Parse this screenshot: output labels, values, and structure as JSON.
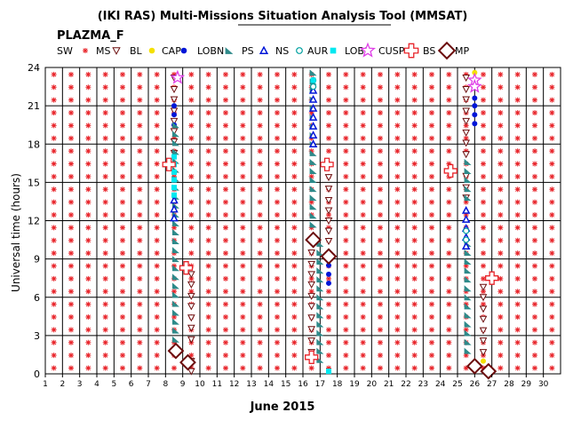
{
  "chart_data": {
    "type": "scatter",
    "title": "(IKI RAS) Multi-Missions Situation Analysis Tool (MMSAT)",
    "subtitle": "PLAZMA_F",
    "xlabel": "June 2015",
    "ylabel": "Universal time (hours)",
    "xlim": [
      1,
      31
    ],
    "ylim": [
      0,
      24
    ],
    "x_ticks": [
      "1",
      "2",
      "3",
      "4",
      "5",
      "6",
      "7",
      "8",
      "9",
      "10",
      "11",
      "12",
      "13",
      "14",
      "15",
      "16",
      "17",
      "18",
      "19",
      "20",
      "21",
      "22",
      "23",
      "24",
      "25",
      "26",
      "27",
      "28",
      "29",
      "30"
    ],
    "y_ticks": [
      "0",
      "3",
      "6",
      "9",
      "12",
      "15",
      "18",
      "21",
      "24"
    ],
    "grid": true,
    "legend_placement": "top",
    "legend": [
      {
        "name": "SW",
        "marker": "asterisk",
        "color": "#e8242a"
      },
      {
        "name": "MS",
        "marker": "triangle-down-open",
        "color": "#6b0d0d"
      },
      {
        "name": "BL",
        "marker": "dot",
        "color": "#f4e000"
      },
      {
        "name": "CAP",
        "marker": "dot",
        "color": "#0016d8"
      },
      {
        "name": "LOBN",
        "marker": "triangle",
        "color": "#2e8a8a"
      },
      {
        "name": "PS",
        "marker": "triangle-open",
        "color": "#0016d8"
      },
      {
        "name": "NS",
        "marker": "circle-open",
        "color": "#00a0a0"
      },
      {
        "name": "AUR",
        "marker": "square",
        "color": "#00e8f0"
      },
      {
        "name": "LOBS",
        "marker": "star-open",
        "color": "#e040e8"
      },
      {
        "name": "CUSP",
        "marker": "plus-open",
        "color": "#e8242a"
      },
      {
        "name": "BS",
        "marker": "diamond-open",
        "color": "#6b0d0d"
      },
      {
        "name": "MP",
        "marker": "none",
        "color": "#000000"
      }
    ],
    "sw_days": [
      1,
      2,
      3,
      4,
      5,
      6,
      7,
      8,
      9,
      10,
      11,
      12,
      13,
      14,
      15,
      16,
      17,
      18,
      19,
      20,
      21,
      22,
      23,
      24,
      25,
      26,
      27,
      28,
      29,
      30
    ],
    "sw_hours": [
      0,
      1,
      2,
      3,
      4,
      5,
      6,
      7,
      8,
      9,
      10,
      11,
      12,
      13,
      14,
      15,
      16,
      17,
      18,
      19,
      20,
      21,
      22,
      23
    ],
    "series": [
      {
        "name": "MS",
        "points": [
          [
            8.5,
            23.2
          ],
          [
            8.5,
            22.3
          ],
          [
            8.5,
            21.5
          ],
          [
            8.5,
            20.6
          ],
          [
            8.5,
            19.8
          ],
          [
            8.5,
            19.0
          ],
          [
            8.5,
            18.2
          ],
          [
            8.5,
            17.3
          ],
          [
            17.5,
            16.3
          ],
          [
            17.5,
            15.4
          ],
          [
            17.5,
            14.5
          ],
          [
            17.5,
            13.6
          ],
          [
            17.5,
            12.8
          ],
          [
            17.5,
            12.0
          ],
          [
            17.5,
            11.2
          ],
          [
            17.5,
            10.4
          ],
          [
            16.5,
            9.5
          ],
          [
            16.5,
            8.6
          ],
          [
            16.5,
            7.8
          ],
          [
            16.5,
            7.0
          ],
          [
            16.5,
            6.1
          ],
          [
            16.5,
            5.3
          ],
          [
            16.5,
            4.4
          ],
          [
            16.5,
            3.5
          ],
          [
            16.5,
            2.6
          ],
          [
            16.5,
            1.7
          ],
          [
            25.5,
            23.2
          ],
          [
            25.5,
            22.3
          ],
          [
            25.5,
            21.5
          ],
          [
            25.5,
            20.6
          ],
          [
            25.5,
            19.8
          ],
          [
            25.5,
            18.9
          ],
          [
            25.5,
            18.1
          ],
          [
            25.5,
            17.2
          ],
          [
            26.5,
            6.8
          ],
          [
            26.5,
            6.0
          ],
          [
            26.5,
            5.1
          ],
          [
            26.5,
            4.3
          ],
          [
            26.5,
            3.4
          ],
          [
            26.5,
            2.6
          ],
          [
            26.5,
            1.7
          ],
          [
            9.5,
            7.8
          ],
          [
            9.5,
            7.0
          ],
          [
            9.5,
            6.1
          ],
          [
            9.5,
            5.3
          ],
          [
            9.5,
            4.4
          ],
          [
            9.5,
            3.6
          ],
          [
            9.5,
            2.7
          ],
          [
            9.5,
            1.0
          ],
          [
            9.5,
            0.2
          ],
          [
            25.5,
            15.5
          ],
          [
            25.5,
            14.6
          ],
          [
            25.5,
            13.8
          ]
        ]
      },
      {
        "name": "BL",
        "points": [
          [
            26.5,
            1.0
          ],
          [
            26.0,
            23.6
          ]
        ]
      },
      {
        "name": "CAP",
        "points": [
          [
            8.5,
            21.0
          ],
          [
            8.5,
            20.3
          ],
          [
            8.5,
            19.5
          ],
          [
            17.5,
            8.5
          ],
          [
            17.5,
            7.8
          ],
          [
            17.5,
            7.1
          ],
          [
            26.0,
            21.6
          ],
          [
            26.0,
            21.0
          ],
          [
            26.0,
            20.3
          ],
          [
            26.0,
            19.6
          ]
        ]
      },
      {
        "name": "LOBN",
        "points": [
          [
            8.6,
            19.5
          ],
          [
            8.6,
            18.8
          ],
          [
            8.6,
            18.1
          ],
          [
            8.6,
            17.4
          ],
          [
            8.6,
            16.7
          ],
          [
            8.6,
            16.0
          ],
          [
            8.6,
            15.3
          ],
          [
            8.6,
            14.6
          ],
          [
            8.6,
            13.9
          ],
          [
            8.6,
            13.2
          ],
          [
            8.6,
            12.5
          ],
          [
            8.6,
            11.8
          ],
          [
            8.6,
            11.1
          ],
          [
            8.6,
            10.4
          ],
          [
            8.6,
            9.7
          ],
          [
            8.6,
            9.0
          ],
          [
            8.6,
            8.3
          ],
          [
            8.6,
            7.6
          ],
          [
            8.6,
            6.9
          ],
          [
            8.6,
            6.2
          ],
          [
            8.6,
            5.5
          ],
          [
            8.6,
            4.8
          ],
          [
            8.6,
            4.1
          ],
          [
            8.6,
            3.4
          ],
          [
            8.6,
            2.7
          ],
          [
            16.6,
            23.6
          ],
          [
            16.6,
            22.9
          ],
          [
            16.6,
            22.2
          ],
          [
            16.6,
            21.5
          ],
          [
            16.6,
            20.8
          ],
          [
            16.6,
            20.1
          ],
          [
            16.6,
            19.4
          ],
          [
            16.6,
            18.7
          ],
          [
            16.6,
            18.0
          ],
          [
            16.6,
            17.3
          ],
          [
            16.6,
            16.6
          ],
          [
            16.6,
            15.9
          ],
          [
            16.6,
            15.2
          ],
          [
            16.6,
            14.5
          ],
          [
            16.6,
            13.8
          ],
          [
            16.6,
            13.1
          ],
          [
            16.6,
            12.4
          ],
          [
            16.6,
            11.7
          ],
          [
            17.0,
            10.2
          ],
          [
            17.0,
            9.5
          ],
          [
            17.0,
            8.8
          ],
          [
            17.0,
            8.1
          ],
          [
            17.0,
            7.4
          ],
          [
            17.0,
            6.7
          ],
          [
            17.0,
            6.0
          ],
          [
            17.0,
            5.3
          ],
          [
            17.0,
            4.6
          ],
          [
            17.0,
            3.9
          ],
          [
            17.0,
            3.2
          ],
          [
            17.0,
            2.5
          ],
          [
            17.0,
            1.8
          ],
          [
            17.0,
            1.1
          ],
          [
            25.6,
            16.6
          ],
          [
            25.6,
            15.9
          ],
          [
            25.6,
            15.2
          ],
          [
            25.6,
            14.5
          ],
          [
            25.6,
            13.8
          ],
          [
            25.6,
            10.2
          ],
          [
            25.6,
            9.5
          ],
          [
            25.6,
            8.8
          ],
          [
            25.6,
            8.1
          ],
          [
            25.6,
            7.4
          ],
          [
            25.6,
            6.7
          ],
          [
            25.6,
            6.0
          ],
          [
            25.6,
            5.3
          ],
          [
            25.6,
            4.6
          ],
          [
            25.6,
            3.9
          ],
          [
            25.6,
            3.2
          ],
          [
            25.6,
            2.5
          ],
          [
            25.6,
            1.8
          ]
        ]
      },
      {
        "name": "PS",
        "points": [
          [
            8.5,
            13.6
          ],
          [
            8.5,
            12.9
          ],
          [
            8.5,
            12.2
          ],
          [
            16.6,
            22.2
          ],
          [
            16.6,
            21.5
          ],
          [
            16.6,
            20.8
          ],
          [
            16.6,
            20.1
          ],
          [
            16.6,
            19.4
          ],
          [
            16.6,
            18.7
          ],
          [
            16.6,
            18.0
          ],
          [
            25.5,
            12.8
          ],
          [
            25.5,
            12.1
          ],
          [
            25.5,
            11.4
          ],
          [
            25.5,
            10.7
          ],
          [
            25.5,
            10.0
          ]
        ]
      },
      {
        "name": "NS",
        "points": [
          [
            16.6,
            23.0
          ],
          [
            16.6,
            22.5
          ],
          [
            25.5,
            11.2
          ],
          [
            25.5,
            10.5
          ]
        ]
      },
      {
        "name": "AUR",
        "points": [
          [
            8.5,
            17.0
          ],
          [
            8.5,
            16.4
          ],
          [
            8.5,
            15.8
          ],
          [
            8.5,
            15.2
          ],
          [
            8.5,
            14.6
          ],
          [
            8.5,
            14.0
          ],
          [
            17.5,
            0.2
          ],
          [
            16.6,
            23.0
          ]
        ]
      },
      {
        "name": "LOBS",
        "points": [
          [
            8.7,
            23.2
          ],
          [
            26.0,
            23.0
          ],
          [
            26.0,
            22.5
          ]
        ]
      },
      {
        "name": "CUSP",
        "points": [
          [
            8.2,
            16.4
          ],
          [
            9.2,
            8.3
          ],
          [
            17.4,
            16.4
          ],
          [
            16.5,
            1.3
          ],
          [
            24.6,
            15.9
          ],
          [
            27.0,
            7.5
          ]
        ]
      },
      {
        "name": "BS",
        "points": [
          [
            8.6,
            1.8
          ],
          [
            9.3,
            0.9
          ],
          [
            16.6,
            10.5
          ],
          [
            17.5,
            9.2
          ],
          [
            26.0,
            0.6
          ],
          [
            26.8,
            0.2
          ]
        ]
      }
    ]
  }
}
